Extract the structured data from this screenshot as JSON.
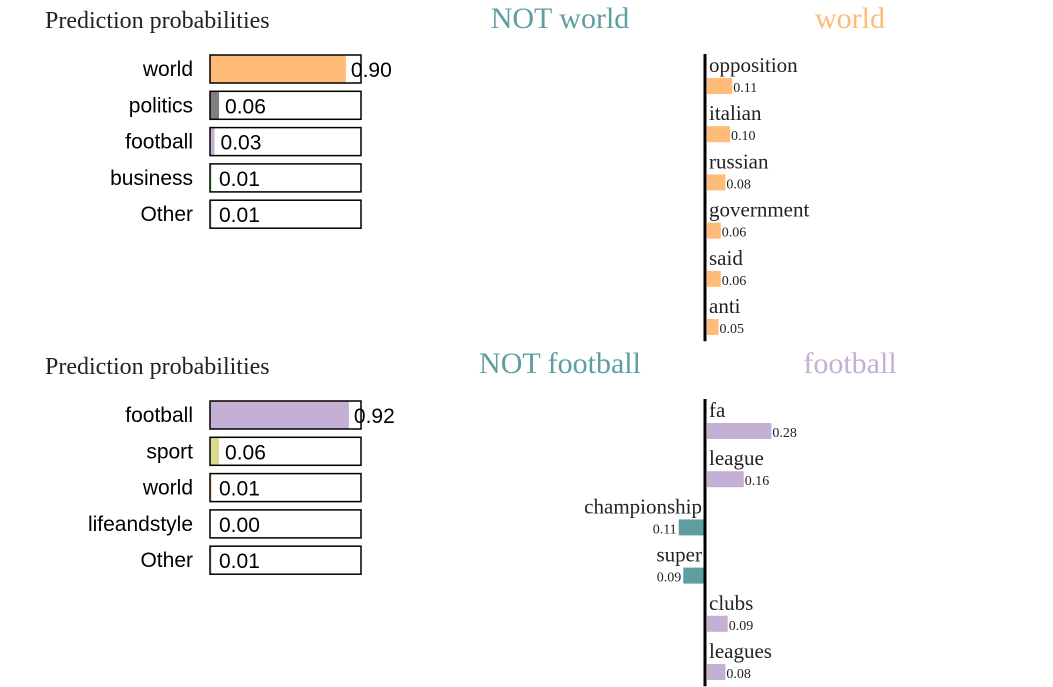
{
  "colors": {
    "world": "#ffbb78",
    "politics": "#7f7f7f",
    "football": "#c5b0d5",
    "business": "#98df8a",
    "sport": "#dbdb8d",
    "negative": "#5f9ea0",
    "other": "#cccccc"
  },
  "chart_data": [
    {
      "type": "bar",
      "title": "Prediction probabilities",
      "categories": [
        "world",
        "politics",
        "football",
        "business",
        "Other"
      ],
      "values": [
        0.9,
        0.06,
        0.03,
        0.01,
        0.01
      ],
      "labels": [
        "0.90",
        "0.06",
        "0.03",
        "0.01",
        "0.01"
      ],
      "xlim": [
        0,
        1
      ]
    },
    {
      "type": "bar",
      "legend": {
        "negative": "NOT world",
        "positive": "world"
      },
      "categories": [
        "opposition",
        "italian",
        "russian",
        "government",
        "said",
        "anti"
      ],
      "values": [
        0.11,
        0.1,
        0.08,
        0.06,
        0.06,
        0.05
      ],
      "labels": [
        "0.11",
        "0.10",
        "0.08",
        "0.06",
        "0.06",
        "0.05"
      ]
    },
    {
      "type": "bar",
      "title": "Prediction probabilities",
      "categories": [
        "football",
        "sport",
        "world",
        "lifeandstyle",
        "Other"
      ],
      "values": [
        0.92,
        0.06,
        0.01,
        0.0,
        0.01
      ],
      "labels": [
        "0.92",
        "0.06",
        "0.01",
        "0.00",
        "0.01"
      ],
      "xlim": [
        0,
        1
      ]
    },
    {
      "type": "bar",
      "legend": {
        "negative": "NOT football",
        "positive": "football"
      },
      "categories": [
        "fa",
        "league",
        "championship",
        "super",
        "clubs",
        "leagues"
      ],
      "values": [
        0.28,
        0.16,
        -0.11,
        -0.09,
        0.09,
        0.08
      ],
      "labels": [
        "0.28",
        "0.16",
        "0.11",
        "0.09",
        "0.09",
        "0.08"
      ]
    }
  ]
}
